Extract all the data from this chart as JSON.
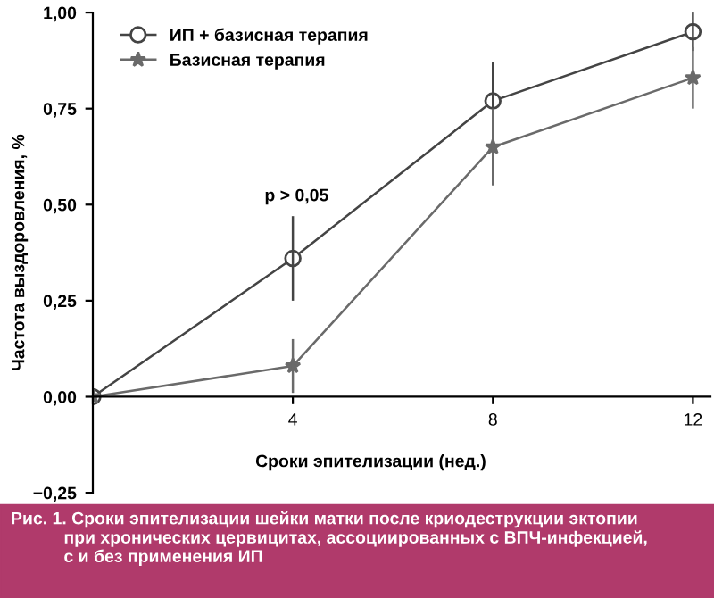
{
  "chart_data": {
    "type": "line",
    "ylabel": "Частота выздоровления, %",
    "xlabel": "Сроки эпителизации (нед.)",
    "x": [
      0,
      4,
      8,
      12
    ],
    "xlim": [
      0,
      12.35
    ],
    "xticks": [
      {
        "value": 0,
        "label": null
      },
      4,
      8,
      12
    ],
    "ylim": [
      -0.25,
      1.0
    ],
    "yticks": [
      {
        "value": -0.25,
        "label": "−0,25"
      },
      {
        "value": 0,
        "label": "0,00"
      },
      {
        "value": 0.25,
        "label": "0,25"
      },
      {
        "value": 0.5,
        "label": "0,50"
      },
      {
        "value": 0.75,
        "label": "0,75"
      },
      {
        "value": 1.0,
        "label": "1,00"
      }
    ],
    "series": [
      {
        "name": "ИП + базисная терапия",
        "color": "#444444",
        "marker": "circle",
        "values": [
          0,
          0.36,
          0.77,
          0.95
        ],
        "errors": [
          null,
          0.11,
          0.1,
          0.05
        ]
      },
      {
        "name": "Базисная терапия",
        "color": "#6a6a6a",
        "marker": "star",
        "values": [
          0,
          0.08,
          0.65,
          0.83
        ],
        "errors": [
          null,
          0.07,
          0.1,
          0.08
        ]
      }
    ],
    "legend": "top left",
    "grid": false,
    "line_style": "solid",
    "annotations": [
      "p > 0,05",
      "Рис. 1. Сроки эпителизации шейки матки после криодеструкции эктопии\n           при хронических цервицитах, ассоциированных с ВПЧ-инфекцией,\n           с и без применения ИП"
    ]
  }
}
